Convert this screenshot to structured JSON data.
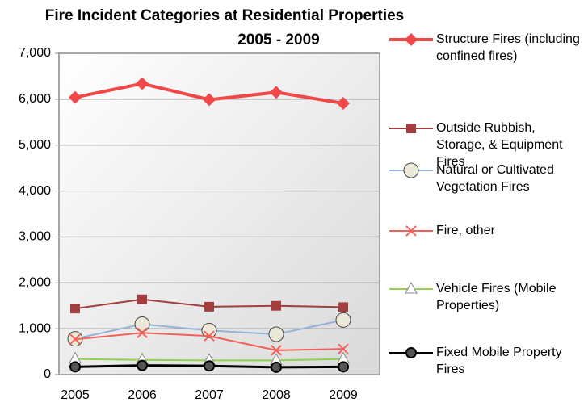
{
  "chart_data": {
    "type": "line",
    "title": "Fire Incident Categories at Residential Properties",
    "subtitle": "2005 - 2009",
    "categories": [
      "2005",
      "2006",
      "2007",
      "2008",
      "2009"
    ],
    "series": [
      {
        "name": "Structure Fires (including confined fires)",
        "color": "#f04848",
        "marker": "diamond",
        "values": [
          6040,
          6340,
          5990,
          6150,
          5910
        ]
      },
      {
        "name": "Outside Rubbish, Storage, & Equipment Fires",
        "color": "#a43e3e",
        "marker": "square",
        "values": [
          1440,
          1640,
          1480,
          1500,
          1470
        ]
      },
      {
        "name": "Natural or Cultivated Vegetation Fires",
        "color": "#95b3d7",
        "marker": "circle",
        "values": [
          780,
          1100,
          960,
          880,
          1190
        ]
      },
      {
        "name": "Fire, other",
        "color": "#f4605a",
        "marker": "x",
        "values": [
          770,
          910,
          840,
          530,
          560
        ]
      },
      {
        "name": "Vehicle Fires (Mobile Properties)",
        "color": "#92d050",
        "marker": "triangle",
        "values": [
          340,
          320,
          310,
          310,
          340
        ]
      },
      {
        "name": "Fixed Mobile Property Fires",
        "color": "#000000",
        "marker": "dot",
        "values": [
          170,
          200,
          190,
          160,
          170
        ]
      }
    ],
    "ylim": [
      0,
      7000
    ],
    "yticks": [
      0,
      {
        "value": 1000,
        "label": "1,000"
      },
      {
        "value": 2000,
        "label": "2,000"
      },
      {
        "value": 3000,
        "label": "3,000"
      },
      {
        "value": 4000,
        "label": "4,000"
      },
      {
        "value": 5000,
        "label": "5,000"
      },
      {
        "value": 6000,
        "label": "6,000"
      },
      {
        "value": 7000,
        "label": "7,000"
      }
    ],
    "grid": true,
    "legend": "right"
  }
}
